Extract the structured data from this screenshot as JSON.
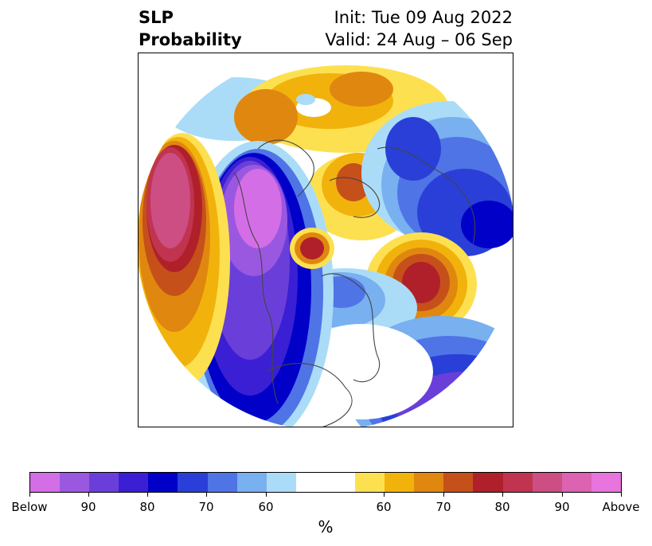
{
  "title": {
    "left_line1": "SLP",
    "left_line2": "Probability",
    "right_line1": "Init: Tue 09 Aug 2022",
    "right_line2": "Valid: 24 Aug – 06 Sep"
  },
  "colorbar": {
    "colors": [
      "#d46ee6",
      "#9a58e0",
      "#6a3fd9",
      "#3a1fd4",
      "#0000c8",
      "#2a3fd8",
      "#4f74e6",
      "#78b0f0",
      "#aadcf8",
      "#ffffff",
      "#fde050",
      "#f2b20c",
      "#e08710",
      "#c6501a",
      "#b0202a",
      "#c03450",
      "#cc4e82",
      "#dc62b2",
      "#e874dd"
    ],
    "tick_labels": [
      "Below",
      "90",
      "80",
      "70",
      "60",
      "60",
      "70",
      "80",
      "90",
      "Above"
    ],
    "units": "%"
  },
  "map_icon": "north-polar-stereographic-map"
}
